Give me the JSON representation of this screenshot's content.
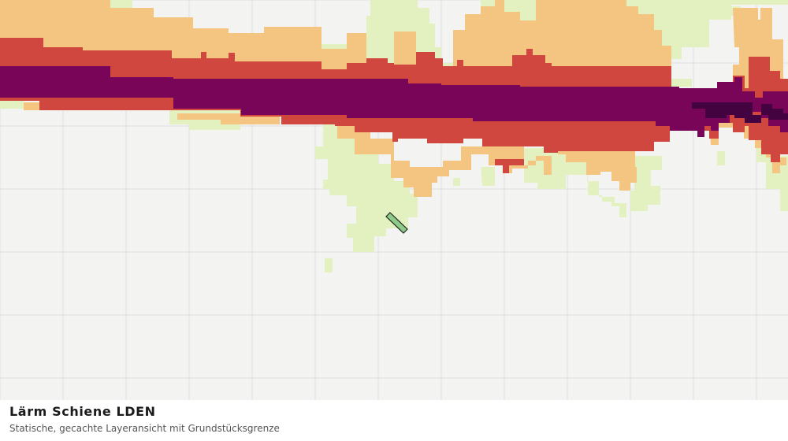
{
  "layer": {
    "title": "Lärm Schiene LDEN",
    "subtitle": "Statische, gecachte Layeransicht mit Grundstücksgrenze"
  },
  "legend_colors": {
    "background": "#f3f4f2",
    "grid": "#dedede",
    "band_lightest": "#e3f1c1",
    "band_light": "#f4c581",
    "band_mid": "#cf473e",
    "band_high": "#780558",
    "band_highest": "#430240",
    "parcel_fill": "#8fca8a",
    "parcel_stroke": "#1e2b1e"
  }
}
